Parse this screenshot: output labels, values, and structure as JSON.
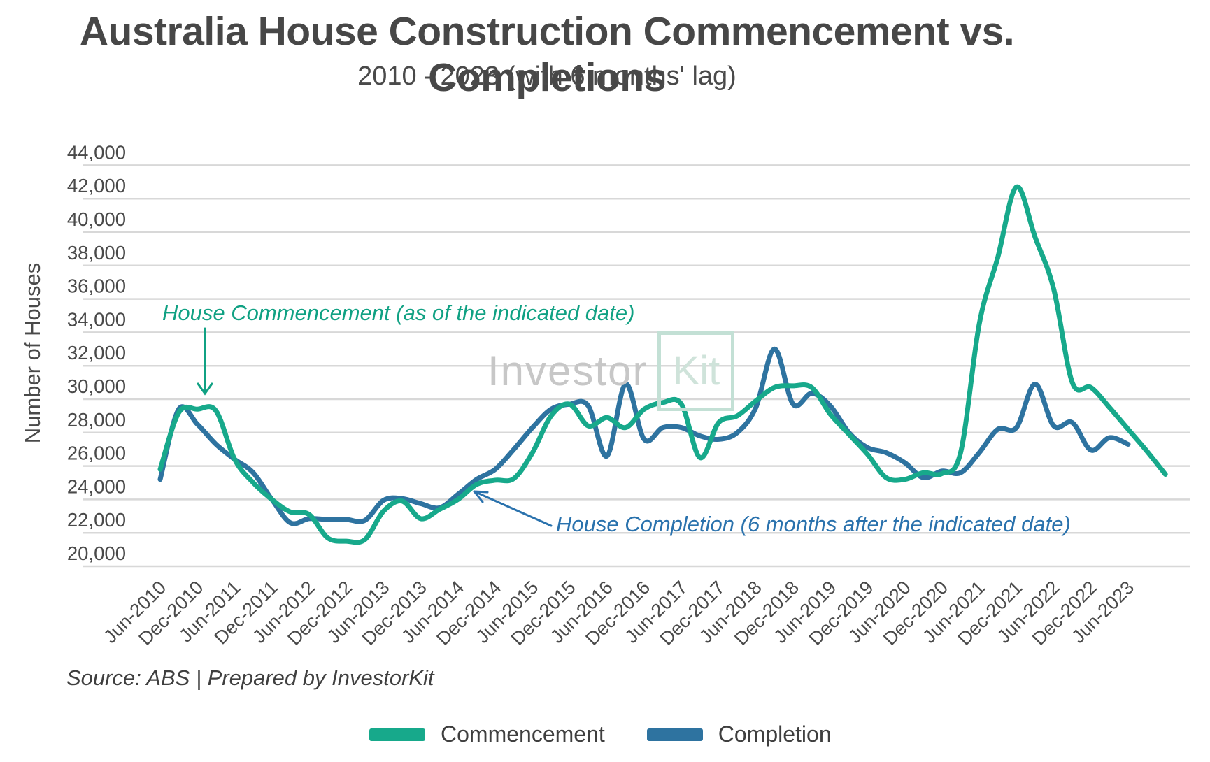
{
  "header": {
    "title": "Australia House Construction Commencement vs. Completions",
    "subtitle": "2010 - 2023 (with 6 months' lag)"
  },
  "source_note": "Source: ABS | Prepared by InvestorKit",
  "watermark": {
    "part1": "Investor",
    "part2": "Kit"
  },
  "legend": [
    {
      "label": "Commencement",
      "color": "#17a98b"
    },
    {
      "label": "Completion",
      "color": "#2e73a0"
    }
  ],
  "annotations": {
    "commencement": "House Commencement (as of the indicated date)",
    "completion": "House Completion (6 months after the indicated date)",
    "commencement_color": "#10a183",
    "completion_color": "#2a72ad"
  },
  "y_axis": {
    "label": "Number of Houses",
    "min": 20000,
    "max": 44000,
    "step": 2000,
    "tick_labels": [
      "20,000",
      "22,000",
      "24,000",
      "26,000",
      "28,000",
      "30,000",
      "32,000",
      "34,000",
      "36,000",
      "38,000",
      "40,000",
      "42,000",
      "44,000"
    ]
  },
  "x_axis": {
    "ticks": [
      "Jun-2010",
      "Dec-2010",
      "Jun-2011",
      "Dec-2011",
      "Jun-2012",
      "Dec-2012",
      "Jun-2013",
      "Dec-2013",
      "Jun-2014",
      "Dec-2014",
      "Jun-2015",
      "Dec-2015",
      "Jun-2016",
      "Dec-2016",
      "Jun-2017",
      "Dec-2017",
      "Jun-2018",
      "Dec-2018",
      "Jun-2019",
      "Dec-2019",
      "Jun-2020",
      "Dec-2020",
      "Jun-2021",
      "Dec-2021",
      "Jun-2022",
      "Dec-2022",
      "Jun-2023"
    ]
  },
  "chart_data": {
    "type": "line",
    "title": "Australia House Construction Commencement vs. Completions",
    "xlabel": "",
    "ylabel": "Number of Houses",
    "ylim": [
      20000,
      44000
    ],
    "grid": true,
    "legend_position": "bottom",
    "x": [
      "Jun-2010",
      "Sep-2010",
      "Dec-2010",
      "Mar-2011",
      "Jun-2011",
      "Sep-2011",
      "Dec-2011",
      "Mar-2012",
      "Jun-2012",
      "Sep-2012",
      "Dec-2012",
      "Mar-2013",
      "Jun-2013",
      "Sep-2013",
      "Dec-2013",
      "Mar-2014",
      "Jun-2014",
      "Sep-2014",
      "Dec-2014",
      "Mar-2015",
      "Jun-2015",
      "Sep-2015",
      "Dec-2015",
      "Mar-2016",
      "Jun-2016",
      "Sep-2016",
      "Dec-2016",
      "Mar-2017",
      "Jun-2017",
      "Sep-2017",
      "Dec-2017",
      "Mar-2018",
      "Jun-2018",
      "Sep-2018",
      "Dec-2018",
      "Mar-2019",
      "Jun-2019",
      "Sep-2019",
      "Dec-2019",
      "Mar-2020",
      "Jun-2020",
      "Sep-2020",
      "Dec-2020",
      "Mar-2021",
      "Jun-2021",
      "Sep-2021",
      "Dec-2021",
      "Mar-2022",
      "Jun-2022",
      "Sep-2022",
      "Dec-2022",
      "Mar-2023",
      "Jun-2023",
      "Sep-2023",
      "Dec-2023"
    ],
    "series": [
      {
        "name": "Commencement",
        "color": "#17a98b",
        "values": [
          25800,
          29200,
          29400,
          29300,
          26400,
          25000,
          24000,
          23250,
          23100,
          21700,
          21500,
          21600,
          23300,
          23900,
          22850,
          23400,
          24000,
          24900,
          25150,
          25250,
          26800,
          29000,
          29700,
          28400,
          28900,
          28300,
          29400,
          29800,
          29700,
          26500,
          28600,
          29000,
          29900,
          30700,
          30800,
          30700,
          29100,
          27900,
          26700,
          25300,
          25200,
          25600,
          25550,
          26800,
          34500,
          38500,
          42700,
          39700,
          36600,
          31000,
          30700,
          29500,
          28200,
          26900,
          25500
        ]
      },
      {
        "name": "Completion",
        "color": "#2e73a0",
        "values": [
          25200,
          29400,
          28500,
          27300,
          26400,
          25600,
          24000,
          22600,
          22850,
          22800,
          22800,
          22750,
          23950,
          24050,
          23750,
          23500,
          24300,
          25200,
          25800,
          27000,
          28300,
          29400,
          29700,
          29600,
          26600,
          30900,
          27600,
          28300,
          28300,
          27800,
          27600,
          28000,
          29500,
          33000,
          29700,
          30350,
          29600,
          28000,
          27100,
          26800,
          26200,
          25300,
          25700,
          25600,
          26800,
          28200,
          28300,
          30900,
          28400,
          28600,
          26950,
          27700,
          27300
        ]
      }
    ]
  }
}
